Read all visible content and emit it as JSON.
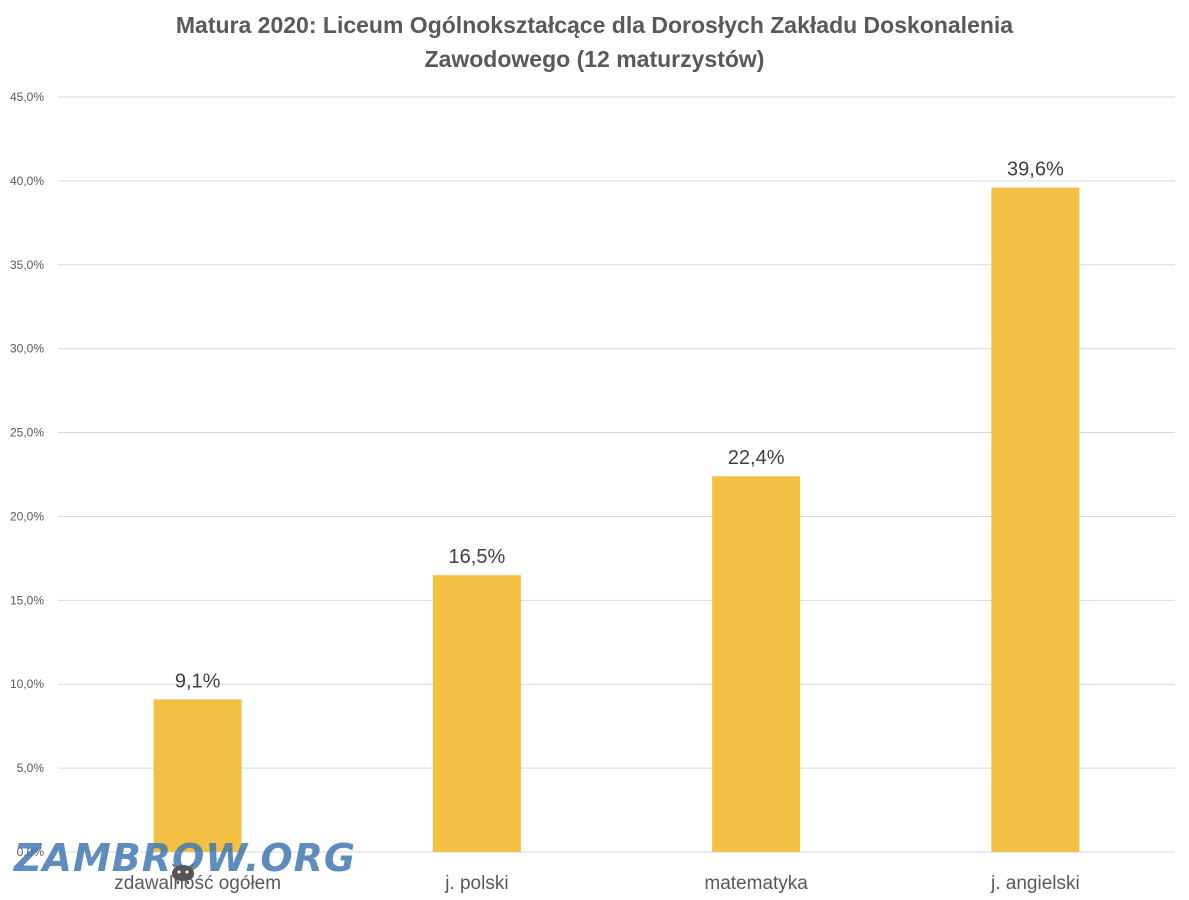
{
  "chart_data": {
    "type": "bar",
    "title_lines": [
      "Matura 2020: Liceum Ogólnokształcące dla Dorosłych Zakładu Doskonalenia",
      "Zawodowego (12 maturzystów)"
    ],
    "categories": [
      "zdawalność ogółem",
      "j. polski",
      "matematyka",
      "j. angielski"
    ],
    "values": [
      9.1,
      16.5,
      22.4,
      39.6
    ],
    "data_labels": [
      "9,1%",
      "16,5%",
      "22,4%",
      "39,6%"
    ],
    "ylim": [
      0,
      45
    ],
    "yticks": [
      "0,0%",
      "5,0%",
      "10,0%",
      "15,0%",
      "20,0%",
      "25,0%",
      "30,0%",
      "35,0%",
      "40,0%",
      "45,0%"
    ],
    "grid": true,
    "bar_color": "#F4C043",
    "gridline_color": "#D9D9D9",
    "text_color": "#595959"
  },
  "watermark": {
    "text": "ZAMBROW.ORG",
    "icon": "bison-icon"
  }
}
